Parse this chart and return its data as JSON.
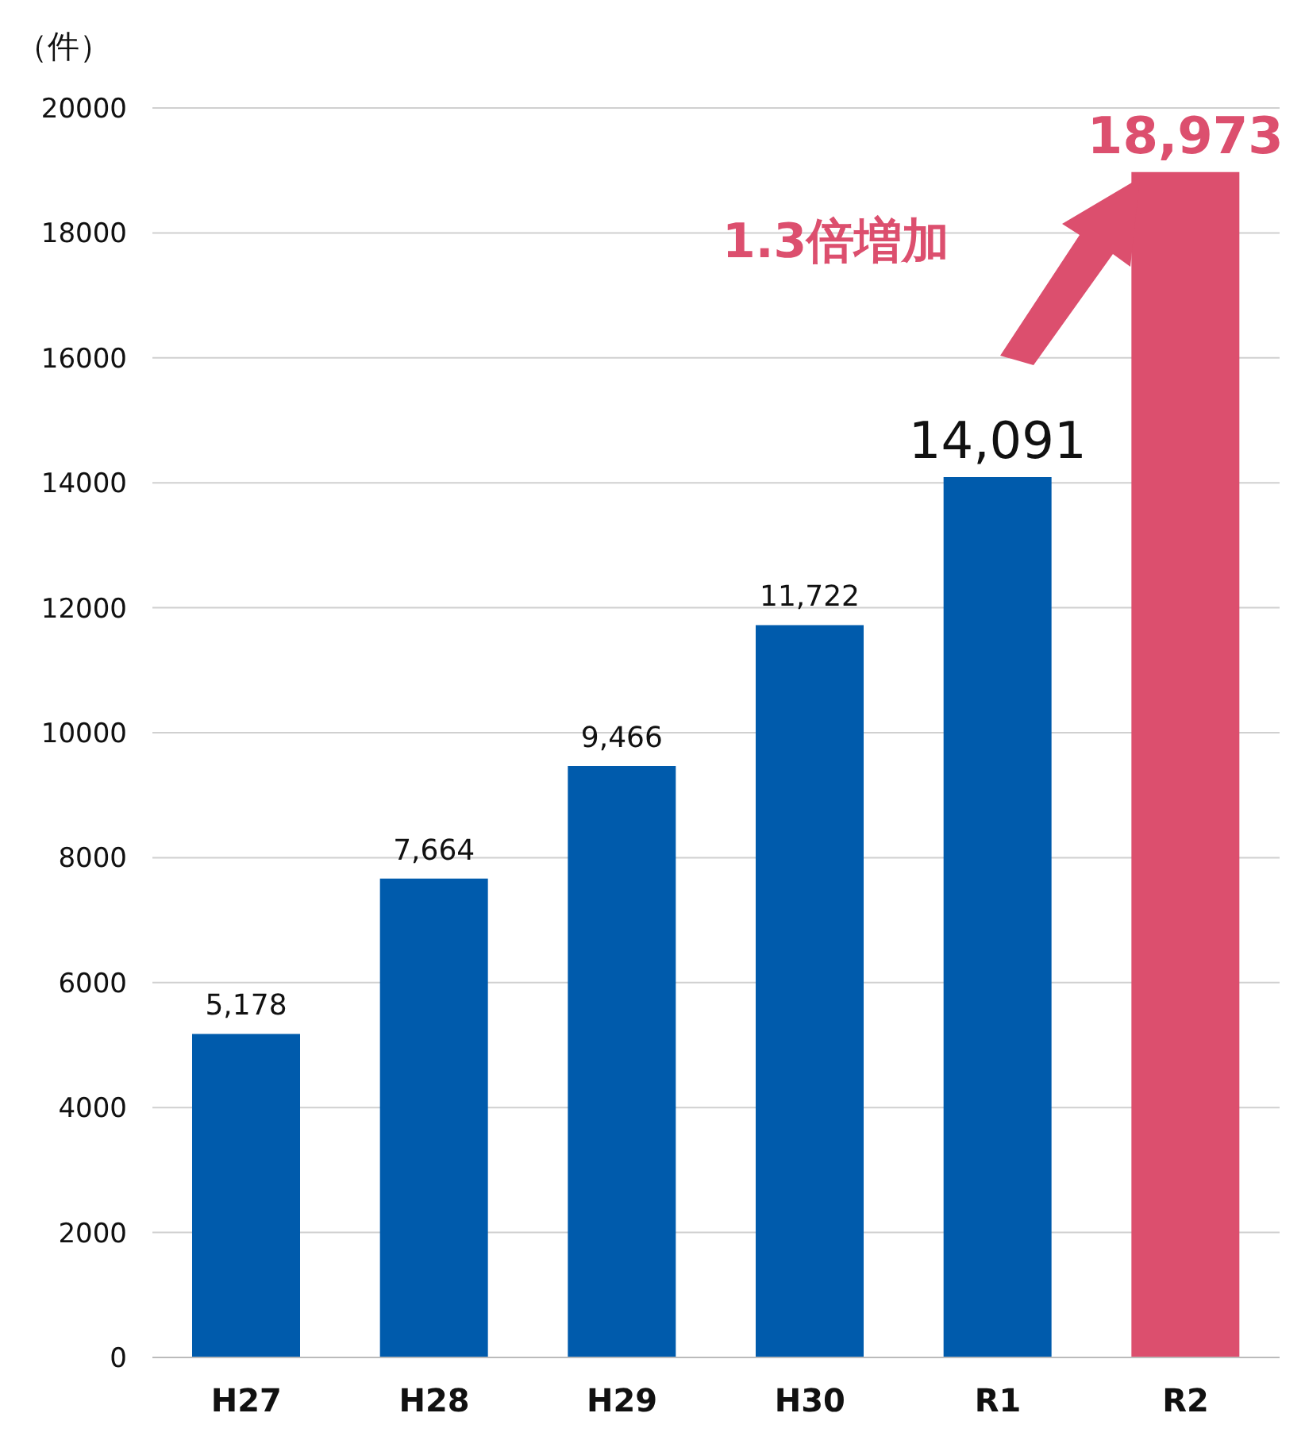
{
  "chart_data": {
    "type": "bar",
    "ylabel": "（件）",
    "categories": [
      "H27",
      "H28",
      "H29",
      "H30",
      "R1",
      "R2"
    ],
    "values": [
      5178,
      7664,
      9466,
      11722,
      14091,
      18973
    ],
    "colors": [
      "#005bac",
      "#005bac",
      "#005bac",
      "#005bac",
      "#005bac",
      "#dc4f6e"
    ],
    "value_labels": [
      "5,178",
      "7,664",
      "9,466",
      "11,722",
      "14,091",
      "18,973"
    ],
    "ylim": [
      0,
      20000
    ],
    "yticks": [
      0,
      2000,
      4000,
      6000,
      8000,
      10000,
      12000,
      14000,
      16000,
      18000,
      20000
    ],
    "grid": "y",
    "legend": false,
    "annotations": [
      "1.3倍増加"
    ]
  }
}
